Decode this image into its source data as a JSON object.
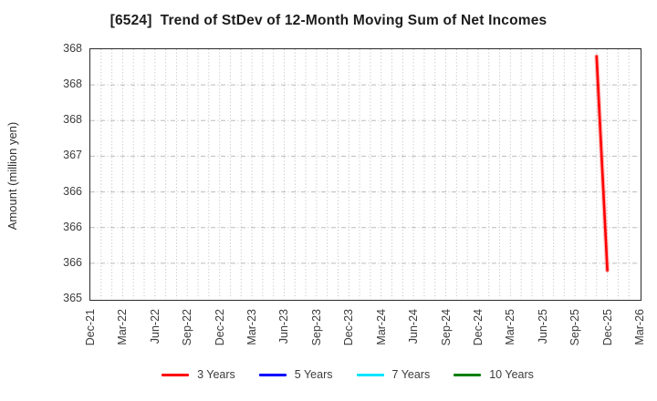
{
  "chart_data": {
    "type": "line",
    "title": "[6524]  Trend of StDev of 12-Month Moving Sum of Net Incomes",
    "xlabel": "",
    "ylabel": "Amount (million yen)",
    "x_start": "Dec-21",
    "x_end": "Mar-26",
    "months_total": 51,
    "x_tick_every_months": 3,
    "x_tick_labels": [
      "Dec-21",
      "Mar-22",
      "Jun-22",
      "Sep-22",
      "Dec-22",
      "Mar-23",
      "Jun-23",
      "Sep-23",
      "Dec-23",
      "Mar-24",
      "Jun-24",
      "Sep-24",
      "Dec-24",
      "Mar-25",
      "Jun-25",
      "Sep-25",
      "Dec-25",
      "Mar-26"
    ],
    "ylim": [
      365,
      368.5
    ],
    "y_tick_step": 0.5,
    "y_tick_labels_bottom_to_top": [
      "365",
      "366",
      "366",
      "366",
      "367",
      "368",
      "368",
      "368"
    ],
    "grid": true,
    "minor_vertical_grid": "monthly",
    "legend_position": "bottom-center",
    "series": [
      {
        "name": "3 Years",
        "color": "#ff0000",
        "points": [
          {
            "x": "Nov-25",
            "y": 368.4
          },
          {
            "x": "Dec-25",
            "y": 365.4
          }
        ]
      },
      {
        "name": "5 Years",
        "color": "#0000ff",
        "points": []
      },
      {
        "name": "7 Years",
        "color": "#00e5ff",
        "points": []
      },
      {
        "name": "10 Years",
        "color": "#008000",
        "points": []
      }
    ],
    "colors": {
      "background": "#ffffff",
      "axis_border": "#2b2b2b",
      "grid": "#bbbbbb",
      "tick_text": "#3c3c3c",
      "title_text": "#1c1c1c"
    }
  }
}
